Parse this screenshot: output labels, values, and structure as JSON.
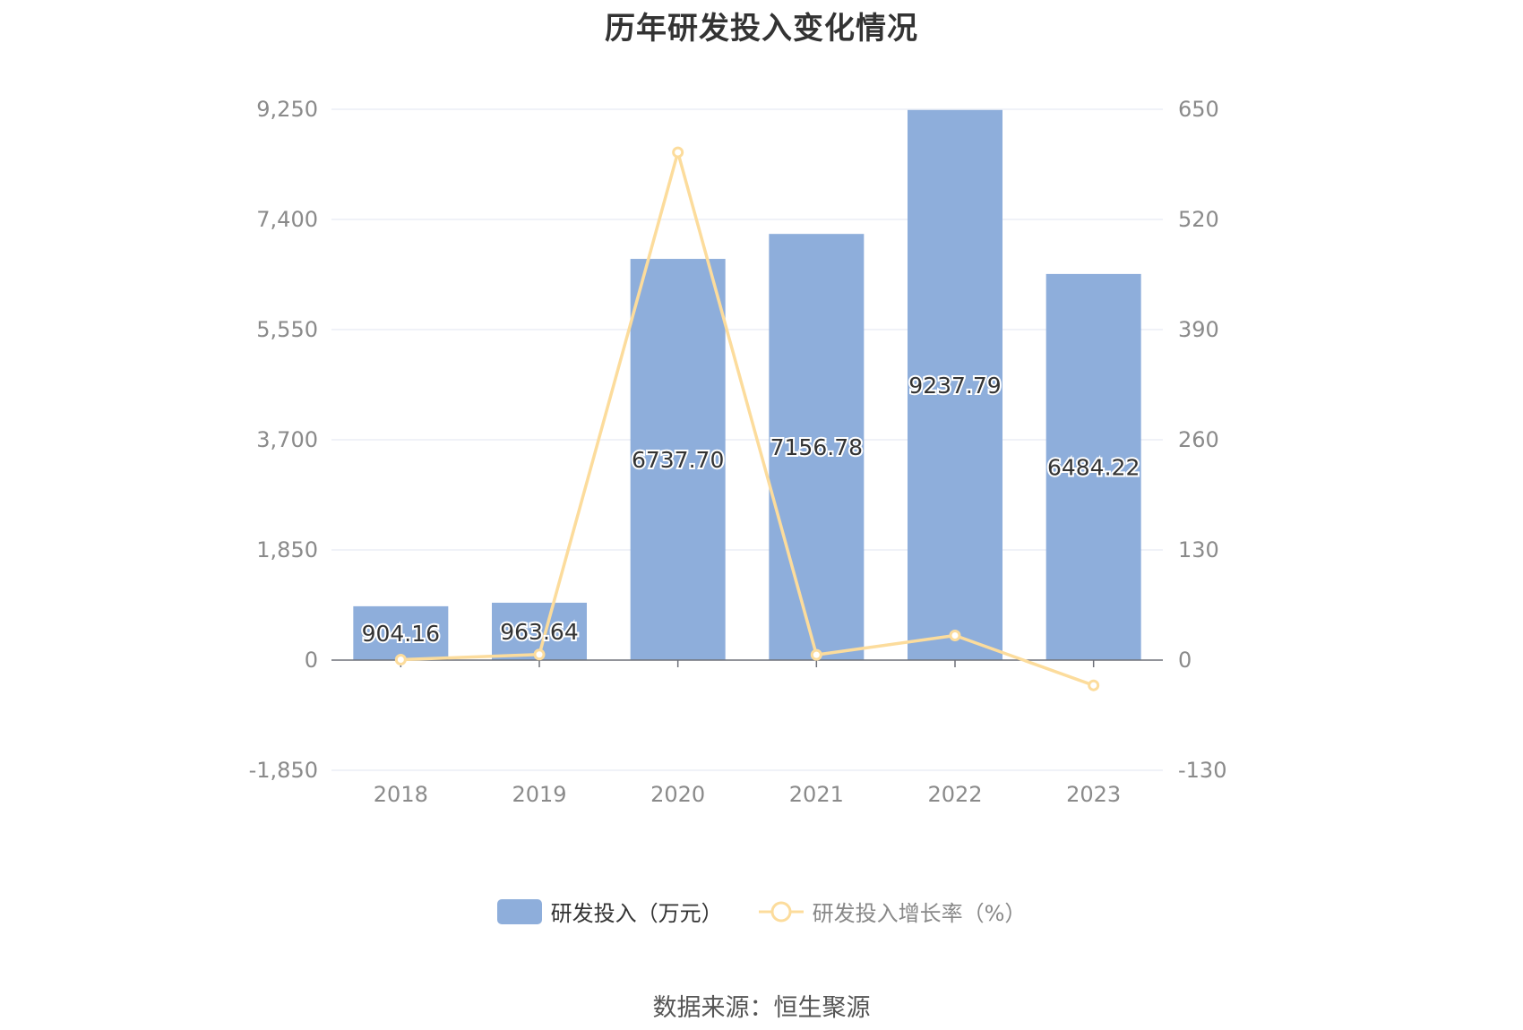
{
  "title": "历年研发投入变化情况",
  "source": "数据来源：恒生聚源",
  "colors": {
    "bar": "#8eaedb",
    "line": "#fcdc9c",
    "grid": "#e0e4f0",
    "axis": "#6e7079",
    "tick_text": "#8a8a8a",
    "label_text": "#333333"
  },
  "chart_data": {
    "type": "bar",
    "categories": [
      "2018",
      "2019",
      "2020",
      "2021",
      "2022",
      "2023"
    ],
    "series": [
      {
        "name": "研发投入（万元）",
        "type": "bar",
        "axis": "left",
        "values": [
          904.16,
          963.64,
          6737.7,
          7156.78,
          9237.79,
          6484.22
        ],
        "labels": [
          "904.16",
          "963.64",
          "6737.70",
          "7156.78",
          "9237.79",
          "6484.22"
        ]
      },
      {
        "name": "研发投入增长率（%）",
        "type": "line",
        "axis": "right",
        "values": [
          0.5,
          6.6,
          599.2,
          6.2,
          29.1,
          -29.8
        ]
      }
    ],
    "y_left": {
      "ylim": [
        -1850,
        9250
      ],
      "ticks": [
        "9,250",
        "7,400",
        "5,550",
        "3,700",
        "1,850",
        "0",
        "-1,850"
      ]
    },
    "y_right": {
      "ylim": [
        -130,
        650
      ],
      "ticks": [
        "650",
        "520",
        "390",
        "260",
        "130",
        "0",
        "-130"
      ]
    },
    "grid": true,
    "legend_position": "bottom"
  }
}
